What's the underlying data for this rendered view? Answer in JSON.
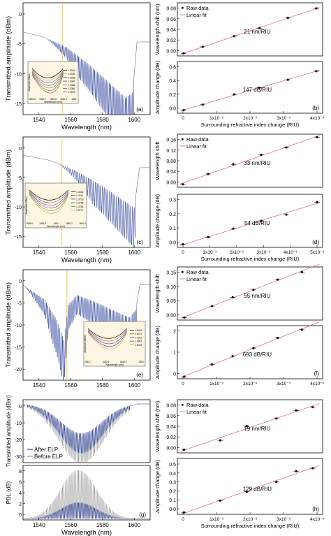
{
  "chart_data": [
    {
      "id": "a",
      "type": "line",
      "panel_label": "(a)",
      "xlabel": "Wavelength (nm)",
      "ylabel": "Transmitted amplitude (dBm)",
      "xlim": [
        1525,
        1612
      ],
      "ylim": [
        -15,
        5
      ],
      "xticks": [
        "1540",
        "1560",
        "1580",
        "1600"
      ],
      "yticks": [
        "0",
        "-5",
        "-10",
        "-15"
      ],
      "marker_x": 1552,
      "envelope": [
        [
          1525,
          -0.2
        ],
        [
          1540,
          -1.2
        ],
        [
          1555,
          -3
        ],
        [
          1570,
          -6
        ],
        [
          1585,
          -9.5
        ],
        [
          1595,
          -12
        ],
        [
          1600,
          -11
        ],
        [
          1603,
          -2
        ]
      ],
      "osc_start": 1540,
      "osc_period": 1.0,
      "osc_depth": 1.0,
      "series_color": "#2a3f9a",
      "inset": {
        "ylabel": "Amplitude (dBm)",
        "xlabel": "Wavelength (nm)",
        "xticks": [
          "1550.6",
          "1550.7",
          "1550.8",
          "1550.9",
          "1551"
        ],
        "legend": [
          "1.3316",
          "1.3326",
          "1.3336",
          "1.3346",
          "1.3356",
          "1.3366",
          "1.3376"
        ],
        "colors": [
          "#000000",
          "#d4a017",
          "#1f4fbf",
          "#7a2a9a",
          "#2f9a3a",
          "#7f5a2a",
          "#c0392b"
        ]
      }
    },
    {
      "id": "b",
      "type": "scatter",
      "x": [
        0,
        0.0006,
        0.0016,
        0.0024,
        0.0033,
        0.0042
      ],
      "series": [
        {
          "name": "Raw data",
          "values": [
            0.0,
            0.013,
            0.034,
            0.05,
            0.07,
            0.089
          ]
        },
        {
          "name": "",
          "values": [
            0.0,
            0.09,
            0.26,
            0.37,
            0.5,
            0.64
          ]
        }
      ],
      "legend": [
        "Raw data",
        "Linear fit"
      ],
      "top_ylabel": "Wavelength shift (nm)",
      "bottom_ylabel": "Amplitude change (dB)",
      "top_ylim": [
        -0.005,
        0.1
      ],
      "bottom_ylim": [
        -0.05,
        0.8
      ],
      "xlim": [
        -0.0002,
        0.0044
      ],
      "xticks": [
        "0",
        "1x10⁻³",
        "2x10⁻³",
        "3x10⁻³",
        "4x10⁻³"
      ],
      "top_yticks": [
        "0.00",
        "0.02",
        "0.04",
        "0.06",
        "0.08"
      ],
      "bottom_yticks": [
        "0.0",
        "0.2",
        "0.4",
        "0.6"
      ],
      "top_annotation": "21 nm/RIU",
      "bottom_annotation": "147 dB/RIU",
      "panel_label": "(b)",
      "xlabel": "Surrounding refractive index change (RIU)"
    },
    {
      "id": "c",
      "type": "line",
      "panel_label": "(c)",
      "xlabel": "Wavelength (nm)",
      "ylabel": "Transmitted amplitude (dBm)",
      "xlim": [
        1540,
        1612
      ],
      "ylim": [
        -15,
        3
      ],
      "xticks": [
        "1540",
        "1560",
        "1580",
        "1600"
      ],
      "yticks": [
        "0",
        "-5",
        "-10",
        "-15"
      ],
      "marker_x": 1562,
      "envelope": [
        [
          1540,
          0
        ],
        [
          1555,
          -0.8
        ],
        [
          1570,
          -2.5
        ],
        [
          1585,
          -5
        ],
        [
          1595,
          -7
        ],
        [
          1603,
          -8.5
        ],
        [
          1606,
          -2
        ]
      ],
      "osc_start": 1560,
      "osc_period": 1.0,
      "osc_depth": 1.5,
      "series_color": "#2a3f9a",
      "inset": {
        "ylabel": "Amplitude (dBm)",
        "xlabel": "Wavelength (nm)",
        "xticks": [
          "1559.6",
          "1559.8",
          "1560",
          "1560.2",
          "1560.4"
        ],
        "legend": [
          "1.3432",
          "1.3741",
          "1.3750",
          "1.3759",
          "1.3768",
          "1.3777"
        ],
        "colors": [
          "#000000",
          "#c0392b",
          "#1f4fbf",
          "#7a2a9a",
          "#2f9a3a",
          "#d4a017"
        ]
      }
    },
    {
      "id": "d",
      "type": "scatter",
      "x": [
        0,
        0.0009,
        0.0018,
        0.0028,
        0.0037,
        0.0048
      ],
      "series": [
        {
          "name": "Raw data",
          "values": [
            0.0,
            0.035,
            0.068,
            0.1,
            0.125,
            0.16
          ]
        },
        {
          "name": "",
          "values": [
            0.0,
            0.045,
            0.1,
            0.15,
            0.19,
            0.27
          ]
        }
      ],
      "legend": [
        "Raw data",
        "Linear fit"
      ],
      "top_ylabel": "Wavelength shift",
      "bottom_ylabel": "Amplitude change (dB)",
      "top_ylim": [
        -0.01,
        0.17
      ],
      "bottom_ylim": [
        -0.02,
        0.32
      ],
      "xlim": [
        -0.0002,
        0.005
      ],
      "xticks": [
        "0",
        "1x10⁻³",
        "2x10⁻³",
        "3x10⁻³",
        "4x10⁻³",
        "5x10⁻³"
      ],
      "top_yticks": [
        "0.00",
        "0.04",
        "0.08",
        "0.12",
        "0.16"
      ],
      "bottom_yticks": [
        "0.0",
        "0.1",
        "0.2",
        "0.3"
      ],
      "top_annotation": "33 nm/RIU",
      "bottom_annotation": "54 dB/RIU",
      "panel_label": "(d)",
      "xlabel": "Surrounding refractive index change (RIU)"
    },
    {
      "id": "e",
      "type": "line",
      "panel_label": "(e)",
      "xlabel": "",
      "ylabel": "Transmitted amplitude (dBm)",
      "xlim": [
        1525,
        1612
      ],
      "ylim": [
        -20,
        2
      ],
      "xticks": [
        "1540",
        "1560",
        "1580",
        "1600"
      ],
      "yticks": [
        "0",
        "-5",
        "-10",
        "-15",
        "-20"
      ],
      "marker_x": 1555,
      "envelope": [
        [
          1525,
          -1
        ],
        [
          1530,
          -2
        ],
        [
          1540,
          -4
        ],
        [
          1548,
          -8
        ],
        [
          1553,
          -12
        ],
        [
          1556,
          -5
        ],
        [
          1562,
          -3
        ],
        [
          1575,
          -4.5
        ],
        [
          1590,
          -6.5
        ],
        [
          1598,
          -7.5
        ],
        [
          1602,
          -6
        ],
        [
          1605,
          -1
        ]
      ],
      "osc_start": 1525,
      "osc_period": 1.0,
      "osc_depth": 2.0,
      "series_color": "#2a3f9a",
      "inset": {
        "ylabel": "Amplitude (dBm)",
        "xlabel": "Wavelength (nm)",
        "xticks": [
          "1552.7",
          "1552.8",
          "1552.9",
          "1553"
        ],
        "legend": [
          "1.6401",
          "1.6471",
          "1.7941",
          "1.6901",
          "1.6401"
        ],
        "colors": [
          "#000000",
          "#c0392b",
          "#1f4fbf",
          "#7a2a9a",
          "#d4a017"
        ]
      }
    },
    {
      "id": "f",
      "type": "scatter",
      "x": [
        0,
        0.0008,
        0.0014,
        0.002,
        0.0027,
        0.0034
      ],
      "series": [
        {
          "name": "Raw data",
          "values": [
            0.0,
            0.045,
            0.08,
            0.11,
            0.15,
            0.18
          ]
        },
        {
          "name": "",
          "values": [
            0.0,
            0.6,
            1.0,
            1.4,
            1.9,
            2.3
          ]
        }
      ],
      "legend": [
        "Raw data",
        "Linear fit"
      ],
      "top_ylabel": "Wavelength shift",
      "bottom_ylabel": "Amplitude change (dB)",
      "top_ylim": [
        -0.01,
        0.2
      ],
      "bottom_ylim": [
        -0.1,
        2.5
      ],
      "xlim": [
        -0.0002,
        0.004
      ],
      "xticks": [
        "0",
        "1x10⁻³",
        "2x10⁻³",
        "3x10⁻³",
        "4x10⁻³"
      ],
      "top_yticks": [
        "0.00",
        "0.05",
        "0.10",
        "0.15"
      ],
      "bottom_yticks": [
        "0",
        "1",
        "2"
      ],
      "top_annotation": "55 nm/RIU",
      "bottom_annotation": "693 dB/RIU",
      "panel_label": "(f)",
      "xlabel": ""
    },
    {
      "id": "g",
      "type": "line",
      "panel_label": "(g)",
      "xlabel": "Wavelength (nm)",
      "top_ylabel": "Transmitted amplitude (dBm)",
      "bottom_ylabel": "PDL (dB)",
      "xlim": [
        1525,
        1612
      ],
      "top_ylim": [
        -30,
        0
      ],
      "bottom_ylim": [
        0,
        10
      ],
      "xticks": [
        "1540",
        "1560",
        "1580",
        "1600"
      ],
      "top_yticks": [
        "0",
        "-10",
        "-20",
        "-30"
      ],
      "bottom_yticks": [
        "0",
        "2",
        "4",
        "6",
        "8"
      ],
      "legend": [
        "After ELP",
        "Before ELP"
      ],
      "series_colors": [
        "#2a3f9a",
        "#9a9a9a"
      ]
    },
    {
      "id": "h",
      "type": "scatter",
      "x": [
        0,
        0.0011,
        0.0019,
        0.0028,
        0.0034,
        0.0039
      ],
      "series": [
        {
          "name": "Raw data",
          "values": [
            0.0,
            0.015,
            0.038,
            0.05,
            0.063,
            0.068
          ]
        },
        {
          "name": "",
          "values": [
            0.0,
            0.12,
            0.21,
            0.31,
            0.42,
            0.45
          ]
        }
      ],
      "legend": [
        "Raw data",
        "Linear fit"
      ],
      "top_ylabel": "Wavelength shift (nm)",
      "bottom_ylabel": "Amplitude change (dB)",
      "top_ylim": [
        -0.005,
        0.08
      ],
      "bottom_ylim": [
        -0.02,
        0.55
      ],
      "xlim": [
        -0.0002,
        0.0042
      ],
      "xticks": [
        "0",
        "1x10⁻³",
        "2x10⁻³",
        "3x10⁻³",
        "4x10⁻³"
      ],
      "top_yticks": [
        "0.00",
        "0.02",
        "0.04",
        "0.06",
        "0.08"
      ],
      "bottom_yticks": [
        "0.0",
        "0.1",
        "0.2",
        "0.3",
        "0.4",
        "0.5"
      ],
      "top_annotation": "19 nm/RIU",
      "bottom_annotation": "129 dB/RIU",
      "panel_label": "(h)",
      "xlabel": "Surrounding refractive index change (RIU)"
    }
  ]
}
